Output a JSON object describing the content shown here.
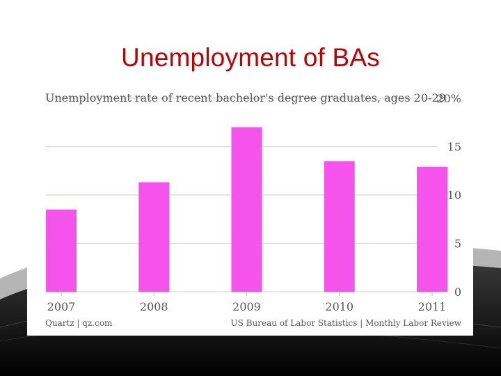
{
  "slide": {
    "title": "Unemployment of BAs"
  },
  "chart_data": {
    "type": "bar",
    "title": "Unemployment rate of recent bachelor's degree graduates, ages 20-29",
    "categories": [
      "2007",
      "2008",
      "2009",
      "2010",
      "2011"
    ],
    "values": [
      8.5,
      11.3,
      17.0,
      13.5,
      12.9
    ],
    "ylim": [
      0,
      20
    ],
    "yticks": [
      0,
      5,
      10,
      15,
      20
    ],
    "ytick_labels": [
      "0",
      "5",
      "10",
      "15",
      "20%"
    ],
    "xlabel": "",
    "ylabel": "",
    "grid": true,
    "bar_color": "#f653ed",
    "source_left": "Quartz | qz.com",
    "source_right": "US Bureau of Labor Statistics | Monthly Labor Review"
  }
}
